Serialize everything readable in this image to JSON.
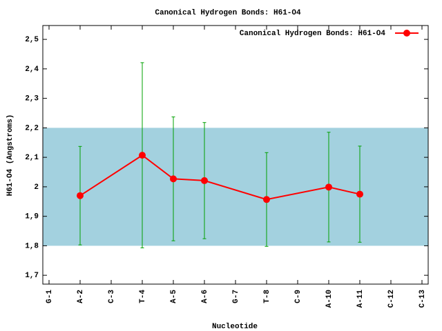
{
  "chart_data": {
    "type": "errorline",
    "title": "Canonical Hydrogen Bonds: H61-O4",
    "x_label": "Nucleotide",
    "y_label": "H61-O4 (Angstroms)",
    "categories": [
      "G-1",
      "A-2",
      "C-3",
      "T-4",
      "A-5",
      "A-6",
      "G-7",
      "T-8",
      "C-9",
      "A-10",
      "A-11",
      "C-12",
      "C-13"
    ],
    "series": [
      {
        "name": "Canonical Hydrogen Bonds: H61-O4",
        "color": "#ff0000",
        "error_color": "#00a000",
        "x": [
          "A-2",
          "T-4",
          "A-5",
          "A-6",
          "T-8",
          "A-10",
          "A-11"
        ],
        "values": [
          1.97,
          2.107,
          2.027,
          2.021,
          1.957,
          1.999,
          1.975
        ],
        "errors": [
          0.167,
          0.314,
          0.21,
          0.197,
          0.159,
          0.186,
          0.163
        ]
      }
    ],
    "reference_band": [
      1.8,
      2.2
    ],
    "band_color": "#a3d1df",
    "ylim": [
      1.67,
      2.547
    ],
    "yticks": [
      {
        "value": 1.7,
        "label": "1,7"
      },
      {
        "value": 1.8,
        "label": "1,8"
      },
      {
        "value": 1.9,
        "label": "1,9"
      },
      2,
      {
        "value": 2.1,
        "label": "2,1"
      },
      {
        "value": 2.2,
        "label": "2,2"
      },
      {
        "value": 2.3,
        "label": "2,3"
      },
      {
        "value": 2.4,
        "label": "2,4"
      },
      {
        "value": 2.5,
        "label": "2,5"
      }
    ],
    "legend": "top-right"
  }
}
